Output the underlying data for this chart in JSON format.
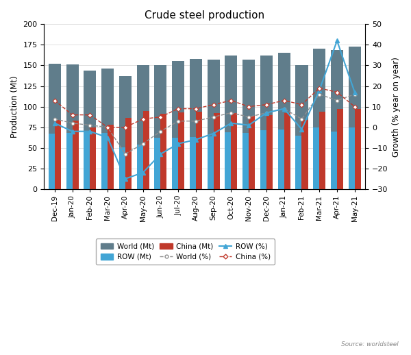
{
  "title": "Crude steel production",
  "ylabel_left": "Production (Mt)",
  "ylabel_right": "Growth (% year on year)",
  "source": "Source: worldsteel",
  "months": [
    "Dec-19",
    "Jan-20",
    "Feb-20",
    "Mar-20",
    "Apr-20",
    "May-20",
    "Jun-20",
    "Jul-20",
    "Aug-20",
    "Sep-20",
    "Oct-20",
    "Nov-20",
    "Dec-20",
    "Jan-21",
    "Feb-21",
    "Mar-21",
    "Apr-21",
    "May-21"
  ],
  "world_mt": [
    152,
    151,
    144,
    146,
    137,
    150,
    150,
    155,
    158,
    157,
    162,
    157,
    162,
    165,
    150,
    170,
    169,
    173
  ],
  "row_mt": [
    67,
    68,
    69,
    68,
    51,
    54,
    62,
    62,
    63,
    64,
    69,
    68,
    71,
    72,
    65,
    75,
    70,
    75
  ],
  "china_mt": [
    84,
    83,
    75,
    78,
    86,
    95,
    91,
    93,
    94,
    92,
    92,
    89,
    90,
    92,
    84,
    94,
    97,
    97
  ],
  "world_pct": [
    4,
    2,
    1,
    0,
    -13,
    -8,
    -2,
    3,
    3,
    5,
    7,
    5,
    7,
    9,
    4,
    16,
    13,
    16
  ],
  "row_pct": [
    2,
    -2,
    -2,
    -5,
    -25,
    -22,
    -13,
    -8,
    -6,
    -3,
    2,
    1,
    7,
    9,
    -1,
    18,
    42,
    17
  ],
  "china_pct": [
    13,
    6,
    6,
    0,
    0,
    4,
    5,
    9,
    9,
    11,
    13,
    10,
    11,
    13,
    11,
    19,
    17,
    10
  ],
  "world_bar_color": "#607d8b",
  "row_bar_color": "#42a5d5",
  "china_bar_color": "#c0392b",
  "world_line_color": "#909090",
  "row_line_color": "#42a5d5",
  "china_line_color": "#c0392b",
  "ylim_left": [
    0,
    200
  ],
  "ylim_right": [
    -30,
    50
  ],
  "yticks_left": [
    0,
    25,
    50,
    75,
    100,
    125,
    150,
    175,
    200
  ],
  "yticks_right": [
    -30,
    -20,
    -10,
    0,
    10,
    20,
    30,
    40,
    50
  ]
}
